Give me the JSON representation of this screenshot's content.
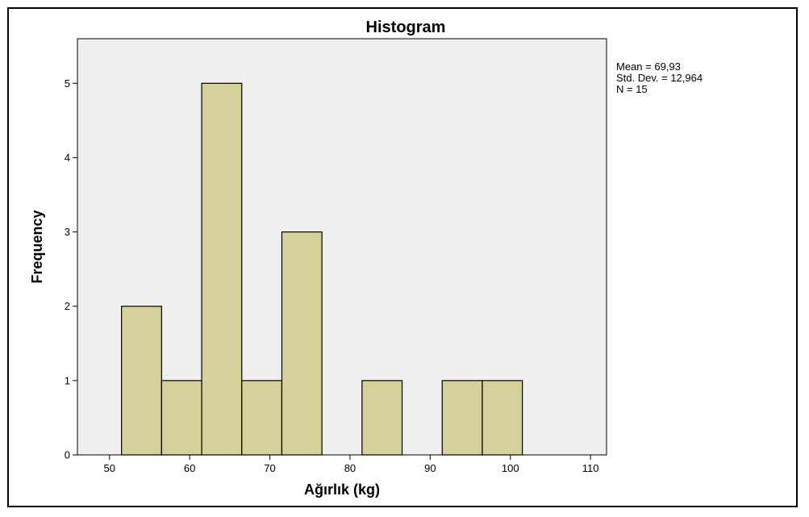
{
  "chart_data": {
    "type": "bar",
    "title": "Histogram",
    "xlabel": "Ağırlık (kg)",
    "ylabel": "Frequency",
    "xlim": [
      46,
      112
    ],
    "ylim": [
      0,
      5.6
    ],
    "x_ticks": [
      50,
      60,
      70,
      80,
      90,
      100,
      110
    ],
    "y_ticks": [
      0,
      1,
      2,
      3,
      4,
      5
    ],
    "bin_width": 5,
    "bins": [
      {
        "start": 51.5,
        "end": 56.5,
        "value": 2
      },
      {
        "start": 56.5,
        "end": 61.5,
        "value": 1
      },
      {
        "start": 61.5,
        "end": 66.5,
        "value": 5
      },
      {
        "start": 66.5,
        "end": 71.5,
        "value": 1
      },
      {
        "start": 71.5,
        "end": 76.5,
        "value": 3
      },
      {
        "start": 81.5,
        "end": 86.5,
        "value": 1
      },
      {
        "start": 91.5,
        "end": 96.5,
        "value": 1
      },
      {
        "start": 96.5,
        "end": 101.5,
        "value": 1
      }
    ],
    "stats": {
      "mean": "Mean = 69,93",
      "std_dev": "Std. Dev. = 12,964",
      "n": "N = 15"
    },
    "colors": {
      "bar_fill": "#d6d09a",
      "bar_stroke": "#000000",
      "plot_background": "#efefef"
    }
  }
}
